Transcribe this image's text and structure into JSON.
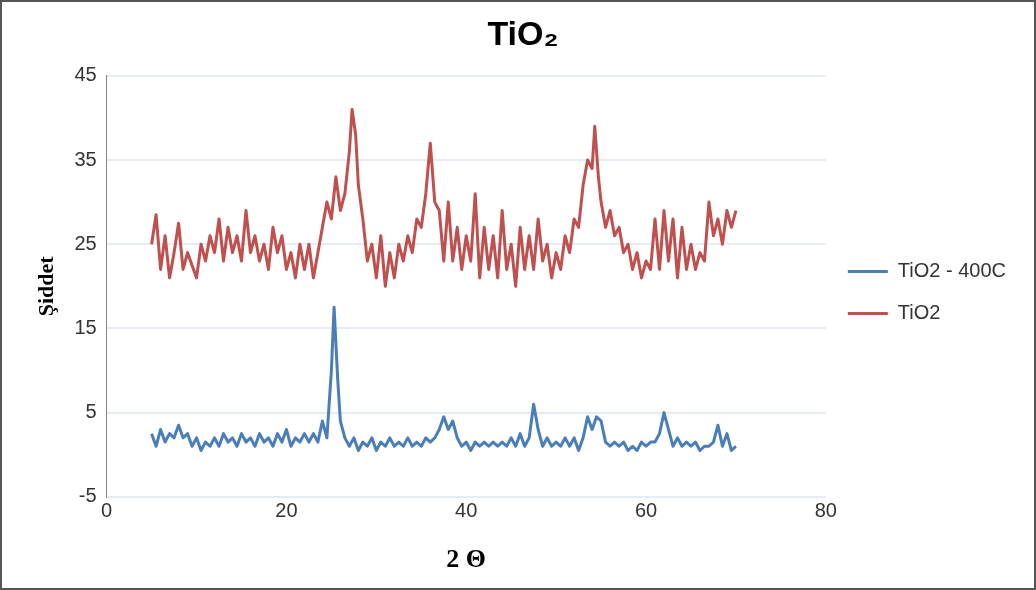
{
  "chart_data": {
    "type": "line",
    "title": "TiO₂",
    "xlabel": "2 Θ",
    "ylabel": "Şiddet",
    "xlim": [
      0,
      80
    ],
    "xticks": [
      0,
      20,
      40,
      60,
      80
    ],
    "ylim": [
      -5,
      45
    ],
    "yticks": [
      -5,
      5,
      15,
      25,
      35,
      45
    ],
    "grid": "y",
    "legend": "right",
    "marker": "none",
    "line_style": "solid",
    "series": [
      {
        "name": "TiO2 - 400C",
        "color": "#4a7ebb",
        "x": [
          5,
          5.5,
          6,
          6.5,
          7,
          7.5,
          8,
          8.5,
          9,
          9.5,
          10,
          10.5,
          11,
          11.5,
          12,
          12.5,
          13,
          13.5,
          14,
          14.5,
          15,
          15.5,
          16,
          16.5,
          17,
          17.5,
          18,
          18.5,
          19,
          19.5,
          20,
          20.5,
          21,
          21.5,
          22,
          22.5,
          23,
          23.5,
          24,
          24.5,
          25,
          25.3,
          25.7,
          26,
          26.5,
          27,
          27.5,
          28,
          28.5,
          29,
          29.5,
          30,
          30.5,
          31,
          31.5,
          32,
          32.5,
          33,
          33.5,
          34,
          34.5,
          35,
          35.5,
          36,
          36.5,
          37,
          37.5,
          38,
          38.5,
          39,
          39.5,
          40,
          40.5,
          41,
          41.5,
          42,
          42.5,
          43,
          43.5,
          44,
          44.5,
          45,
          45.5,
          46,
          46.5,
          47,
          47.5,
          48,
          48.5,
          49,
          49.5,
          50,
          50.5,
          51,
          51.5,
          52,
          52.5,
          53,
          53.5,
          54,
          54.5,
          55,
          55.5,
          56,
          56.5,
          57,
          57.5,
          58,
          58.5,
          59,
          59.5,
          60,
          60.5,
          61,
          61.5,
          62,
          62.5,
          63,
          63.5,
          64,
          64.5,
          65,
          65.5,
          66,
          66.5,
          67,
          67.5,
          68,
          68.5,
          69,
          69.5,
          70
        ],
        "values": [
          2.5,
          1,
          3,
          1.5,
          2.5,
          2,
          3.5,
          2,
          2.5,
          1,
          2,
          0.5,
          1.5,
          1,
          2,
          1,
          2.5,
          1.5,
          2,
          1,
          2.5,
          1.5,
          2,
          1,
          2.5,
          1.5,
          2,
          1,
          2.5,
          1.5,
          3,
          1,
          2,
          1.5,
          2.5,
          1.5,
          2.5,
          1.5,
          4,
          2,
          10,
          17.5,
          9,
          4,
          2,
          1,
          2,
          0.5,
          1.5,
          1,
          2,
          0.5,
          1.5,
          1,
          2,
          1,
          1.5,
          1,
          2,
          1,
          1.5,
          1,
          2,
          1.5,
          2,
          3,
          4.5,
          3,
          4,
          2,
          1,
          1.5,
          0.5,
          1.5,
          1,
          1.5,
          1,
          1.5,
          1,
          1.5,
          1,
          2,
          1,
          2.5,
          1,
          2,
          6,
          3,
          1,
          2,
          1,
          1.5,
          1,
          2,
          1,
          2,
          0.5,
          2,
          4.5,
          3,
          4.5,
          4,
          1.5,
          1,
          1.5,
          1,
          1.5,
          0.5,
          1,
          0.5,
          1.5,
          1,
          1.5,
          1.5,
          2.5,
          5,
          3,
          1,
          2,
          1,
          1.5,
          1,
          1.5,
          0.5,
          1,
          1,
          1.5,
          3.5,
          1,
          2.5,
          0.5,
          1
        ]
      },
      {
        "name": "TiO2",
        "color": "#c0504d",
        "x": [
          5,
          5.5,
          6,
          6.5,
          7,
          7.5,
          8,
          8.5,
          9,
          10,
          10.5,
          11,
          11.5,
          12,
          12.5,
          13,
          13.5,
          14,
          14.5,
          15,
          15.5,
          16,
          16.5,
          17,
          17.5,
          18,
          18.5,
          19,
          19.5,
          20,
          20.5,
          21,
          21.5,
          22,
          22.5,
          23,
          23.5,
          24,
          24.5,
          25,
          25.5,
          26,
          26.5,
          27,
          27.3,
          27.7,
          28,
          28.5,
          29,
          29.5,
          30,
          30.5,
          31,
          31.5,
          32,
          32.5,
          33,
          33.5,
          34,
          34.5,
          35,
          35.5,
          36,
          36.5,
          37,
          37.5,
          38,
          38.5,
          39,
          39.5,
          40,
          40.5,
          41,
          41.5,
          42,
          42.5,
          43,
          43.5,
          44,
          44.5,
          45,
          45.5,
          46,
          46.5,
          47,
          47.5,
          48,
          48.5,
          49,
          49.5,
          50,
          50.5,
          51,
          51.5,
          52,
          52.5,
          53,
          53.5,
          54,
          54.3,
          54.7,
          55,
          55.5,
          56,
          56.5,
          57,
          57.5,
          58,
          58.5,
          59,
          59.5,
          60,
          60.5,
          61,
          61.5,
          62,
          62.5,
          63,
          63.5,
          64,
          64.5,
          65,
          65.5,
          66,
          66.5,
          67,
          67.5,
          68,
          68.5,
          69,
          69.5,
          70
        ],
        "values": [
          25,
          28.5,
          22,
          26,
          21,
          24,
          27.5,
          22,
          24,
          21,
          25,
          23,
          26,
          24,
          28,
          23,
          27,
          24,
          26,
          23,
          29,
          24,
          26,
          23,
          25,
          22,
          27,
          24,
          26,
          22,
          24,
          21,
          25,
          22,
          25,
          21,
          24,
          27,
          30,
          28,
          33,
          29,
          31,
          36,
          41,
          38,
          32,
          28,
          23,
          25,
          21,
          26,
          20,
          24,
          21,
          25,
          23,
          26,
          24,
          28,
          27,
          31,
          37,
          30,
          29,
          23,
          30,
          23,
          27,
          22,
          26,
          23,
          31,
          21,
          27,
          22,
          26,
          21,
          29,
          22,
          25,
          20,
          27,
          22,
          26,
          22,
          28,
          23,
          25,
          21,
          24,
          22,
          26,
          24,
          28,
          27,
          32,
          35,
          34,
          39,
          33,
          30,
          27,
          29,
          26,
          27,
          24,
          25,
          22,
          24,
          21,
          23,
          22,
          28,
          22,
          29,
          23,
          28,
          21,
          27,
          22,
          25,
          22,
          24,
          23,
          30,
          26,
          28,
          25,
          29,
          27,
          29
        ]
      }
    ]
  }
}
